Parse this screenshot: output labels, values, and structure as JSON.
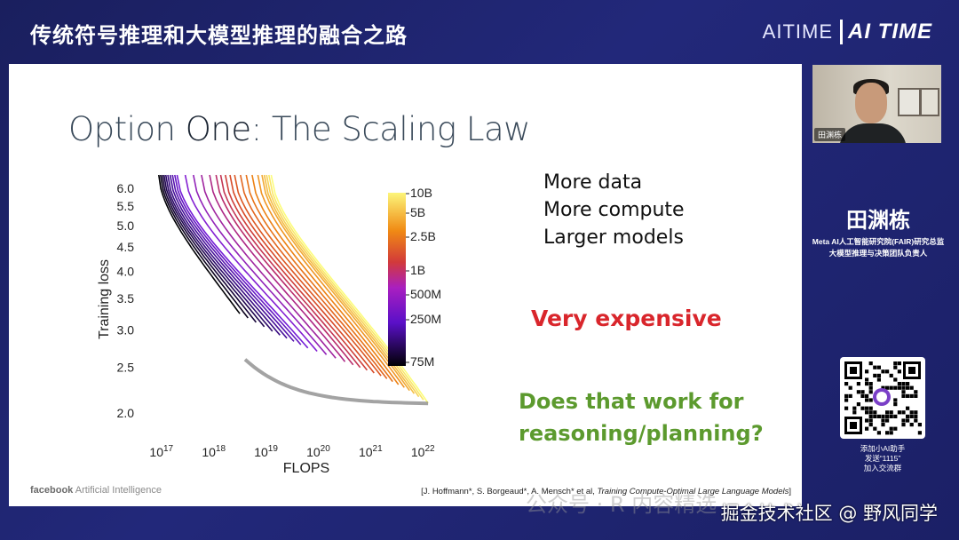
{
  "banner": {
    "title": "传统符号推理和大模型推理的融合之路",
    "brand_text": "AITIME",
    "brand_logo": "AI TIME"
  },
  "slide": {
    "title_prefix": "Option ",
    "title_emph": "One",
    "title_suffix": ": The Scaling Law",
    "bullets": [
      "More data",
      "More compute",
      "Larger models"
    ],
    "expensive": "Very expensive",
    "question_line1": "Does that work for",
    "question_line2": "reasoning/planning?",
    "footer_brand": "facebook",
    "footer_text": "Artificial Intelligence",
    "citation_plain": "[J. Hoffmann*, S. Borgeaud*, A. Mensch* et al, ",
    "citation_italic": "Training Compute-Optimal Large Language Models",
    "citation_end": "]"
  },
  "chart_data": {
    "type": "line",
    "xlabel": "FLOPS",
    "ylabel": "Training loss",
    "x_scale": "log",
    "y_scale": "log",
    "x_ticks": [
      17,
      18,
      19,
      20,
      21,
      22
    ],
    "x_tick_labels": [
      "10^17",
      "10^18",
      "10^19",
      "10^20",
      "10^21",
      "10^22"
    ],
    "y_ticks": [
      2.0,
      2.5,
      3.0,
      3.5,
      4.0,
      4.5,
      5.0,
      5.5,
      6.0
    ],
    "y_tick_labels": [
      "2.0",
      "2.5",
      "3.0",
      "3.5",
      "4.0",
      "4.5",
      "5.0",
      "5.5",
      "6.0"
    ],
    "colorbar_labels": [
      "10B",
      "5B",
      "2.5B",
      "1B",
      "500M",
      "250M",
      "75M"
    ],
    "colors": {
      "low": "#000004",
      "mid1": "#7b1ee0",
      "mid2": "#c03a5e",
      "mid3": "#e8701a",
      "high": "#fcfc7a"
    },
    "series_groups": [
      {
        "name": "75M",
        "log_flops_start": 16.95,
        "log_flops_end": 18.5,
        "loss_end": 3.25
      },
      {
        "name": "250M",
        "log_flops_start": 17.1,
        "log_flops_end": 19.2,
        "loss_end": 2.95
      },
      {
        "name": "500M",
        "log_flops_start": 17.3,
        "log_flops_end": 19.8,
        "loss_end": 2.75
      },
      {
        "name": "1B",
        "log_flops_start": 18.0,
        "log_flops_end": 20.6,
        "loss_end": 2.55
      },
      {
        "name": "2.5B",
        "log_flops_start": 18.4,
        "log_flops_end": 21.2,
        "loss_end": 2.4
      },
      {
        "name": "5B",
        "log_flops_start": 18.9,
        "log_flops_end": 21.7,
        "loss_end": 2.25
      },
      {
        "name": "10B",
        "log_flops_start": 19.1,
        "log_flops_end": 22.1,
        "loss_end": 2.1
      }
    ]
  },
  "webcam": {
    "name_tag": "田渊栋"
  },
  "speaker": {
    "name": "田渊栋",
    "title_line1": "Meta AI人工智能研究院(FAIR)研究总监",
    "title_line2": "大模型推理与决策团队负责人"
  },
  "qr": {
    "caption_line1": "添加小AI助手",
    "caption_line2": "发送“1115”",
    "caption_line3": "加入交流群"
  },
  "overlay": {
    "watermark": "公众号 · R  内容精选",
    "credit": "掘金技术社区 @ 野风同学"
  }
}
